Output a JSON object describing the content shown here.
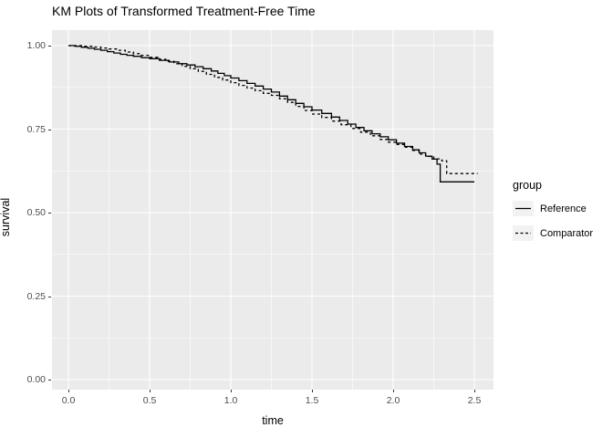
{
  "title": "KM Plots of Transformed Treatment-Free Time",
  "axes": {
    "x": {
      "label": "time",
      "ticks": [
        "0.0",
        "0.5",
        "1.0",
        "1.5",
        "2.0",
        "2.5"
      ],
      "tick_values": [
        0,
        0.5,
        1.0,
        1.5,
        2.0,
        2.5
      ],
      "minor": [
        0.25,
        0.75,
        1.25,
        1.75,
        2.25
      ]
    },
    "y": {
      "label": "survival",
      "ticks": [
        "0.00",
        "0.25",
        "0.50",
        "0.75",
        "1.00"
      ],
      "tick_values": [
        0,
        0.25,
        0.5,
        0.75,
        1.0
      ],
      "minor": [
        0.125,
        0.375,
        0.625,
        0.875
      ]
    }
  },
  "legend": {
    "title": "group",
    "items": [
      {
        "label": "Reference",
        "linetype": "solid"
      },
      {
        "label": "Comparator",
        "linetype": "dashed"
      }
    ]
  },
  "colors": {
    "panel_bg": "#EBEBEB",
    "grid": "#FFFFFF",
    "line": "#000000",
    "tick_text": "#4D4D4D",
    "legend_key_bg": "#F2F2F2"
  },
  "chart_data": {
    "type": "line",
    "subtype": "kaplan-meier-step",
    "title": "KM Plots of Transformed Treatment-Free Time",
    "xlabel": "time",
    "ylabel": "survival",
    "xlim": [
      0,
      2.52
    ],
    "ylim": [
      0,
      1
    ],
    "grid": true,
    "legend_position": "right",
    "series": [
      {
        "name": "Reference",
        "linetype": "solid",
        "points": [
          [
            0.0,
            1.0
          ],
          [
            0.04,
            0.998
          ],
          [
            0.08,
            0.995
          ],
          [
            0.12,
            0.992
          ],
          [
            0.16,
            0.989
          ],
          [
            0.2,
            0.986
          ],
          [
            0.24,
            0.982
          ],
          [
            0.28,
            0.978
          ],
          [
            0.32,
            0.974
          ],
          [
            0.36,
            0.971
          ],
          [
            0.4,
            0.968
          ],
          [
            0.45,
            0.964
          ],
          [
            0.5,
            0.961
          ],
          [
            0.56,
            0.956
          ],
          [
            0.62,
            0.951
          ],
          [
            0.68,
            0.946
          ],
          [
            0.73,
            0.942
          ],
          [
            0.78,
            0.937
          ],
          [
            0.83,
            0.931
          ],
          [
            0.88,
            0.924
          ],
          [
            0.92,
            0.917
          ],
          [
            0.96,
            0.91
          ],
          [
            1.0,
            0.903
          ],
          [
            1.05,
            0.895
          ],
          [
            1.1,
            0.887
          ],
          [
            1.15,
            0.879
          ],
          [
            1.2,
            0.87
          ],
          [
            1.25,
            0.861
          ],
          [
            1.3,
            0.849
          ],
          [
            1.35,
            0.838
          ],
          [
            1.4,
            0.827
          ],
          [
            1.45,
            0.817
          ],
          [
            1.5,
            0.807
          ],
          [
            1.56,
            0.797
          ],
          [
            1.62,
            0.786
          ],
          [
            1.67,
            0.776
          ],
          [
            1.72,
            0.765
          ],
          [
            1.77,
            0.755
          ],
          [
            1.82,
            0.745
          ],
          [
            1.87,
            0.736
          ],
          [
            1.92,
            0.727
          ],
          [
            1.97,
            0.718
          ],
          [
            2.02,
            0.708
          ],
          [
            2.07,
            0.698
          ],
          [
            2.12,
            0.688
          ],
          [
            2.16,
            0.679
          ],
          [
            2.2,
            0.669
          ],
          [
            2.24,
            0.66
          ],
          [
            2.27,
            0.645
          ],
          [
            2.29,
            0.592
          ],
          [
            2.5,
            0.592
          ]
        ]
      },
      {
        "name": "Comparator",
        "linetype": "dashed",
        "points": [
          [
            0.0,
            1.0
          ],
          [
            0.1,
            0.998
          ],
          [
            0.15,
            0.996
          ],
          [
            0.2,
            0.993
          ],
          [
            0.25,
            0.99
          ],
          [
            0.3,
            0.986
          ],
          [
            0.35,
            0.981
          ],
          [
            0.4,
            0.976
          ],
          [
            0.45,
            0.971
          ],
          [
            0.5,
            0.965
          ],
          [
            0.55,
            0.959
          ],
          [
            0.6,
            0.953
          ],
          [
            0.65,
            0.946
          ],
          [
            0.7,
            0.938
          ],
          [
            0.75,
            0.931
          ],
          [
            0.8,
            0.923
          ],
          [
            0.85,
            0.914
          ],
          [
            0.9,
            0.905
          ],
          [
            0.95,
            0.897
          ],
          [
            1.0,
            0.889
          ],
          [
            1.05,
            0.881
          ],
          [
            1.1,
            0.873
          ],
          [
            1.15,
            0.865
          ],
          [
            1.2,
            0.857
          ],
          [
            1.25,
            0.851
          ],
          [
            1.3,
            0.841
          ],
          [
            1.35,
            0.83
          ],
          [
            1.4,
            0.818
          ],
          [
            1.45,
            0.806
          ],
          [
            1.5,
            0.795
          ],
          [
            1.56,
            0.785
          ],
          [
            1.62,
            0.774
          ],
          [
            1.68,
            0.763
          ],
          [
            1.74,
            0.752
          ],
          [
            1.8,
            0.741
          ],
          [
            1.86,
            0.73
          ],
          [
            1.92,
            0.719
          ],
          [
            1.97,
            0.711
          ],
          [
            2.02,
            0.704
          ],
          [
            2.07,
            0.696
          ],
          [
            2.12,
            0.686
          ],
          [
            2.16,
            0.675
          ],
          [
            2.2,
            0.668
          ],
          [
            2.25,
            0.661
          ],
          [
            2.3,
            0.655
          ],
          [
            2.33,
            0.617
          ],
          [
            2.52,
            0.617
          ]
        ]
      }
    ]
  }
}
